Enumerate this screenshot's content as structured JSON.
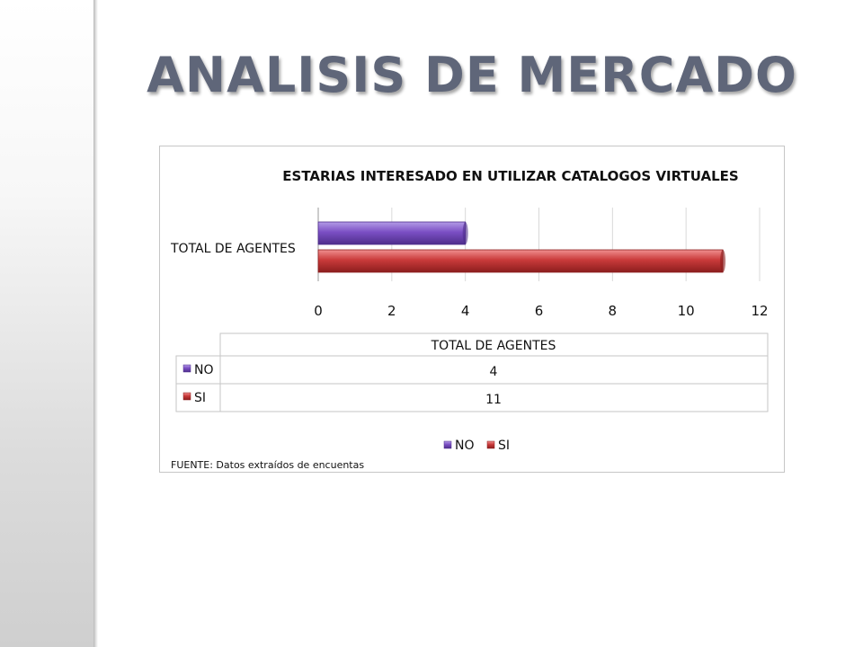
{
  "slide": {
    "title": "ANALISIS DE MERCADO"
  },
  "chart_data": {
    "type": "bar",
    "orientation": "horizontal",
    "title": "ESTARIAS  INTERESADO  EN  UTILIZAR  CATALOGOS  VIRTUALES",
    "categories": [
      "TOTAL  DE AGENTES"
    ],
    "series": [
      {
        "name": "NO",
        "values": [
          4
        ],
        "color": "#7b4fc4"
      },
      {
        "name": "SI",
        "values": [
          11
        ],
        "color": "#c93a3a"
      }
    ],
    "xlim": [
      0,
      12
    ],
    "xticks": [
      "0",
      "2",
      "4",
      "6",
      "8",
      "10",
      "12"
    ],
    "grid": true,
    "legend": "bottom",
    "data_table": {
      "header": "TOTAL  DE AGENTES",
      "rows": [
        {
          "label": "NO",
          "value": "4"
        },
        {
          "label": "SI",
          "value": "11"
        }
      ]
    },
    "source": "FUENTE: Datos extraídos de encuentas"
  }
}
